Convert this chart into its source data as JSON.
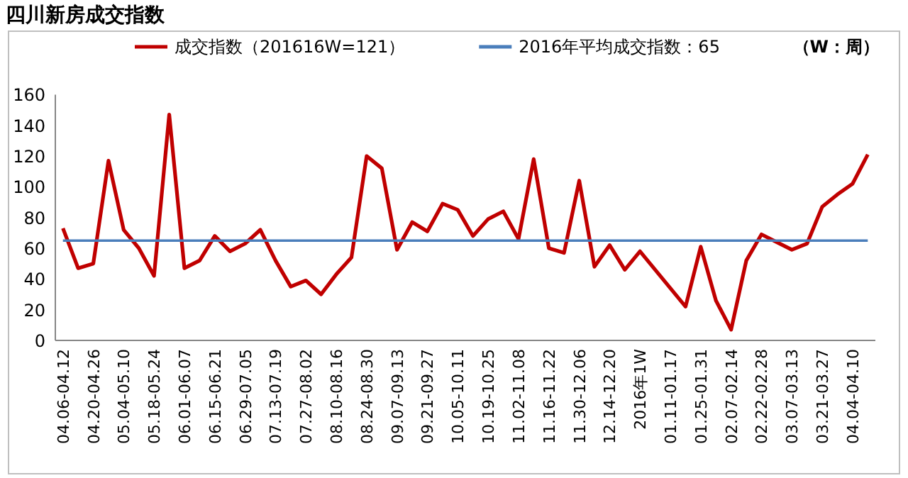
{
  "chart_data": {
    "type": "line",
    "title": "四川新房成交指数",
    "annotations": [
      "（W：周）"
    ],
    "categories": [
      "04.06-04.12",
      null,
      "04.20-04.26",
      null,
      "05.04-05.10",
      null,
      "05.18-05.24",
      null,
      "06.01-06.07",
      null,
      "06.15-06.21",
      null,
      "06.29-07.05",
      null,
      "07.13-07.19",
      null,
      "07.27-08.02",
      null,
      "08.10-08.16",
      null,
      "08.24-08.30",
      null,
      "09.07-09.13",
      null,
      "09.21-09.27",
      null,
      "10.05-10.11",
      null,
      "10.19-10.25",
      null,
      "11.02-11.08",
      null,
      "11.16-11.22",
      null,
      "11.30-12.06",
      null,
      "12.14-12.20",
      null,
      "2016年1W",
      null,
      "01.11-01.17",
      null,
      "01.25-01.31",
      null,
      "02.07-02.14",
      null,
      "02.22-02.28",
      null,
      "03.07-03.13",
      null,
      "03.21-03.27",
      null,
      "04.04-04.10",
      null
    ],
    "series": [
      {
        "name": "成交指数（201616W=121）",
        "color": "#c00000",
        "values": [
          73,
          47,
          50,
          117,
          72,
          60,
          42,
          147,
          47,
          52,
          68,
          58,
          63,
          72,
          52,
          35,
          39,
          30,
          43,
          54,
          120,
          112,
          59,
          77,
          71,
          89,
          85,
          68,
          79,
          84,
          66,
          118,
          60,
          57,
          104,
          48,
          62,
          46,
          58,
          46,
          34,
          22,
          61,
          26,
          7,
          52,
          69,
          64,
          59,
          63,
          87,
          95,
          102,
          121
        ]
      },
      {
        "name": "2016年平均成交指数：65",
        "color": "#4a7ebb",
        "values": [
          65,
          65,
          65,
          65,
          65,
          65,
          65,
          65,
          65,
          65,
          65,
          65,
          65,
          65,
          65,
          65,
          65,
          65,
          65,
          65,
          65,
          65,
          65,
          65,
          65,
          65,
          65,
          65,
          65,
          65,
          65,
          65,
          65,
          65,
          65,
          65,
          65,
          65,
          65,
          65,
          65,
          65,
          65,
          65,
          65,
          65,
          65,
          65,
          65,
          65,
          65,
          65,
          65,
          65
        ]
      }
    ],
    "ylim": [
      0,
      160
    ],
    "yticks": [
      0,
      20,
      40,
      60,
      80,
      100,
      120,
      140,
      160
    ],
    "grid": false,
    "legend": "top",
    "marker": "none",
    "line_style": "solid"
  }
}
